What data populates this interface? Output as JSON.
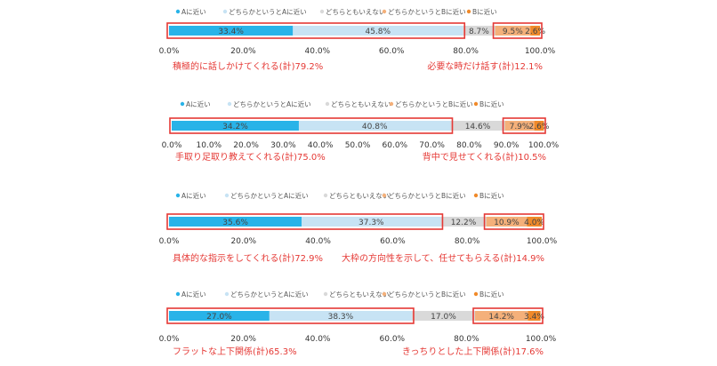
{
  "colors": {
    "a": "#29b3e8",
    "leanA": "#c7e3f4",
    "neutral": "#d9d9d9",
    "leanB": "#f4b07a",
    "b": "#f08a2a",
    "highlight": "#e53935",
    "callout": "#e53935",
    "axis": "#333333"
  },
  "chart_data": [
    {
      "type": "bar",
      "orientation": "horizontal-stacked",
      "xlim": [
        0,
        100
      ],
      "x_ticks": [
        "0.0%",
        "20.0%",
        "40.0%",
        "60.0%",
        "80.0%",
        "100.0%"
      ],
      "legend": [
        "Aに近い",
        "どちらかというとAに近い",
        "どちらともいえない",
        "どちらかというとBに近い",
        "Bに近い"
      ],
      "values": [
        33.4,
        45.8,
        8.7,
        9.5,
        2.6
      ],
      "value_labels": [
        "33.4%",
        "45.8%",
        "8.7%",
        "9.5%",
        "2.6%"
      ],
      "left_callout": "積極的に話しかけてくれる(計)79.2%",
      "right_callout": "必要な時だけ話す(計)12.1%"
    },
    {
      "type": "bar",
      "orientation": "horizontal-stacked",
      "xlim": [
        0,
        100
      ],
      "x_ticks": [
        "0.0%",
        "10.0%",
        "20.0%",
        "30.0%",
        "40.0%",
        "50.0%",
        "60.0%",
        "70.0%",
        "80.0%",
        "90.0%",
        "100.0%"
      ],
      "legend": [
        "Aに近い",
        "どちらかというとAに近い",
        "どちらともいえない",
        "どちらかというとBに近い",
        "Bに近い"
      ],
      "values": [
        34.2,
        40.8,
        14.6,
        7.9,
        2.6
      ],
      "value_labels": [
        "34.2%",
        "40.8%",
        "14.6%",
        "7.9%",
        "2.6%"
      ],
      "left_callout": "手取り足取り教えてくれる(計)75.0%",
      "right_callout": "背中で見せてくれる(計)10.5%"
    },
    {
      "type": "bar",
      "orientation": "horizontal-stacked",
      "xlim": [
        0,
        100
      ],
      "x_ticks": [
        "0.0%",
        "20.0%",
        "40.0%",
        "60.0%",
        "80.0%",
        "100.0%"
      ],
      "legend": [
        "Aに近い",
        "どちらかというとAに近い",
        "どちらともいえない",
        "どちらかというとBに近い",
        "Bに近い"
      ],
      "values": [
        35.6,
        37.3,
        12.2,
        10.9,
        4.0
      ],
      "value_labels": [
        "35.6%",
        "37.3%",
        "12.2%",
        "10.9%",
        "4.0%"
      ],
      "left_callout": "具体的な指示をしてくれる(計)72.9%",
      "right_callout": "大枠の方向性を示して、任せてもらえる(計)14.9%"
    },
    {
      "type": "bar",
      "orientation": "horizontal-stacked",
      "xlim": [
        0,
        100
      ],
      "x_ticks": [
        "0.0%",
        "20.0%",
        "40.0%",
        "60.0%",
        "80.0%",
        "100.0%"
      ],
      "legend": [
        "Aに近い",
        "どちらかというとAに近い",
        "どちらともいえない",
        "どちらかというとBに近い",
        "Bに近い"
      ],
      "values": [
        27.0,
        38.3,
        17.0,
        14.2,
        3.4
      ],
      "value_labels": [
        "27.0%",
        "38.3%",
        "17.0%",
        "14.2%",
        "3.4%"
      ],
      "left_callout": "フラットな上下関係(計)65.3%",
      "right_callout": "きっちりとした上下関係(計)17.6%"
    }
  ]
}
